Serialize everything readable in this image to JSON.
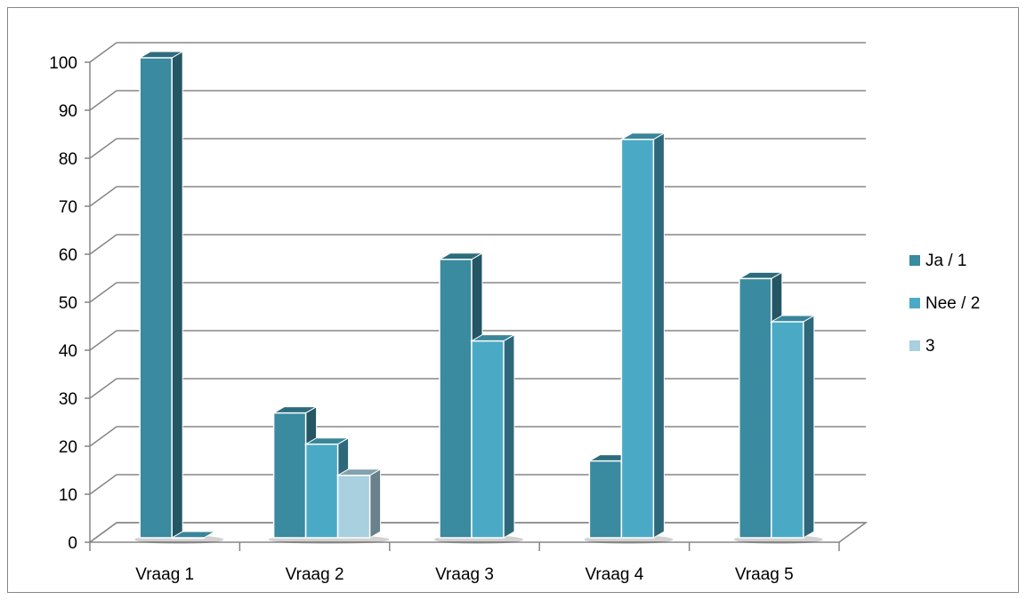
{
  "chart_data": {
    "type": "bar",
    "categories": [
      "Vraag 1",
      "Vraag 2",
      "Vraag 3",
      "Vraag 4",
      "Vraag 5"
    ],
    "series": [
      {
        "name": "Ja / 1",
        "values": [
          100,
          26,
          58,
          16,
          54
        ],
        "color": "#3a8aa0"
      },
      {
        "name": "Nee / 2",
        "values": [
          0,
          19.5,
          41,
          83,
          45
        ],
        "color": "#4aaac6"
      },
      {
        "name": "3",
        "values": [
          null,
          13,
          null,
          null,
          null
        ],
        "color": "#a8d0de"
      }
    ],
    "title": "",
    "xlabel": "",
    "ylabel": "",
    "ylim": [
      0,
      100
    ],
    "yticks": [
      0,
      10,
      20,
      30,
      40,
      50,
      60,
      70,
      80,
      90,
      100
    ],
    "grid": true,
    "legend_position": "right",
    "three_d": true
  }
}
